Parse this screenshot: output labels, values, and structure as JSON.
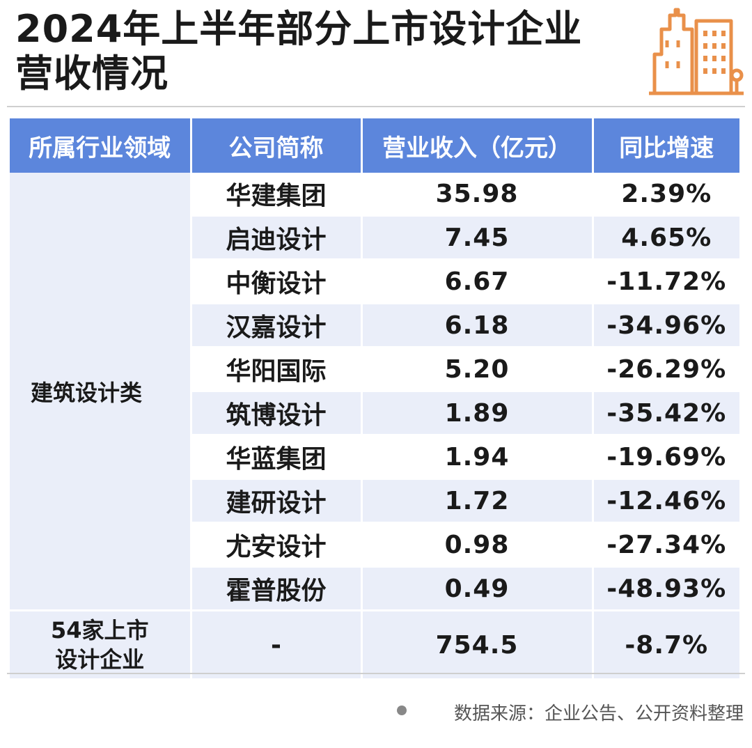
{
  "title": {
    "line1": "2024年上半年部分上市设计企业",
    "line2": "营收情况"
  },
  "logo_icon": "city-buildings-icon",
  "accent_color": "#5c86dc",
  "logo_color": "#e9904a",
  "table": {
    "headers": [
      "所属行业领域",
      "公司简称",
      "营业收入（亿元）",
      "同比增速"
    ],
    "category": "建筑设计类",
    "rows": [
      {
        "company": "华建集团",
        "revenue": "35.98",
        "growth": "2.39%"
      },
      {
        "company": "启迪设计",
        "revenue": "7.45",
        "growth": "4.65%"
      },
      {
        "company": "中衡设计",
        "revenue": "6.67",
        "growth": "-11.72%"
      },
      {
        "company": "汉嘉设计",
        "revenue": "6.18",
        "growth": "-34.96%"
      },
      {
        "company": "华阳国际",
        "revenue": "5.20",
        "growth": "-26.29%"
      },
      {
        "company": "筑博设计",
        "revenue": "1.89",
        "growth": "-35.42%"
      },
      {
        "company": "华蓝集团",
        "revenue": "1.94",
        "growth": "-19.69%"
      },
      {
        "company": "建研设计",
        "revenue": "1.72",
        "growth": "-12.46%"
      },
      {
        "company": "尤安设计",
        "revenue": "0.98",
        "growth": "-27.34%"
      },
      {
        "company": "霍普股份",
        "revenue": "0.49",
        "growth": "-48.93%"
      }
    ],
    "total": {
      "label_line1": "54家上市",
      "label_line2": "设计企业",
      "company": "-",
      "revenue": "754.5",
      "growth": "-8.7%"
    }
  },
  "source": "数据来源：企业公告、公开资料整理"
}
